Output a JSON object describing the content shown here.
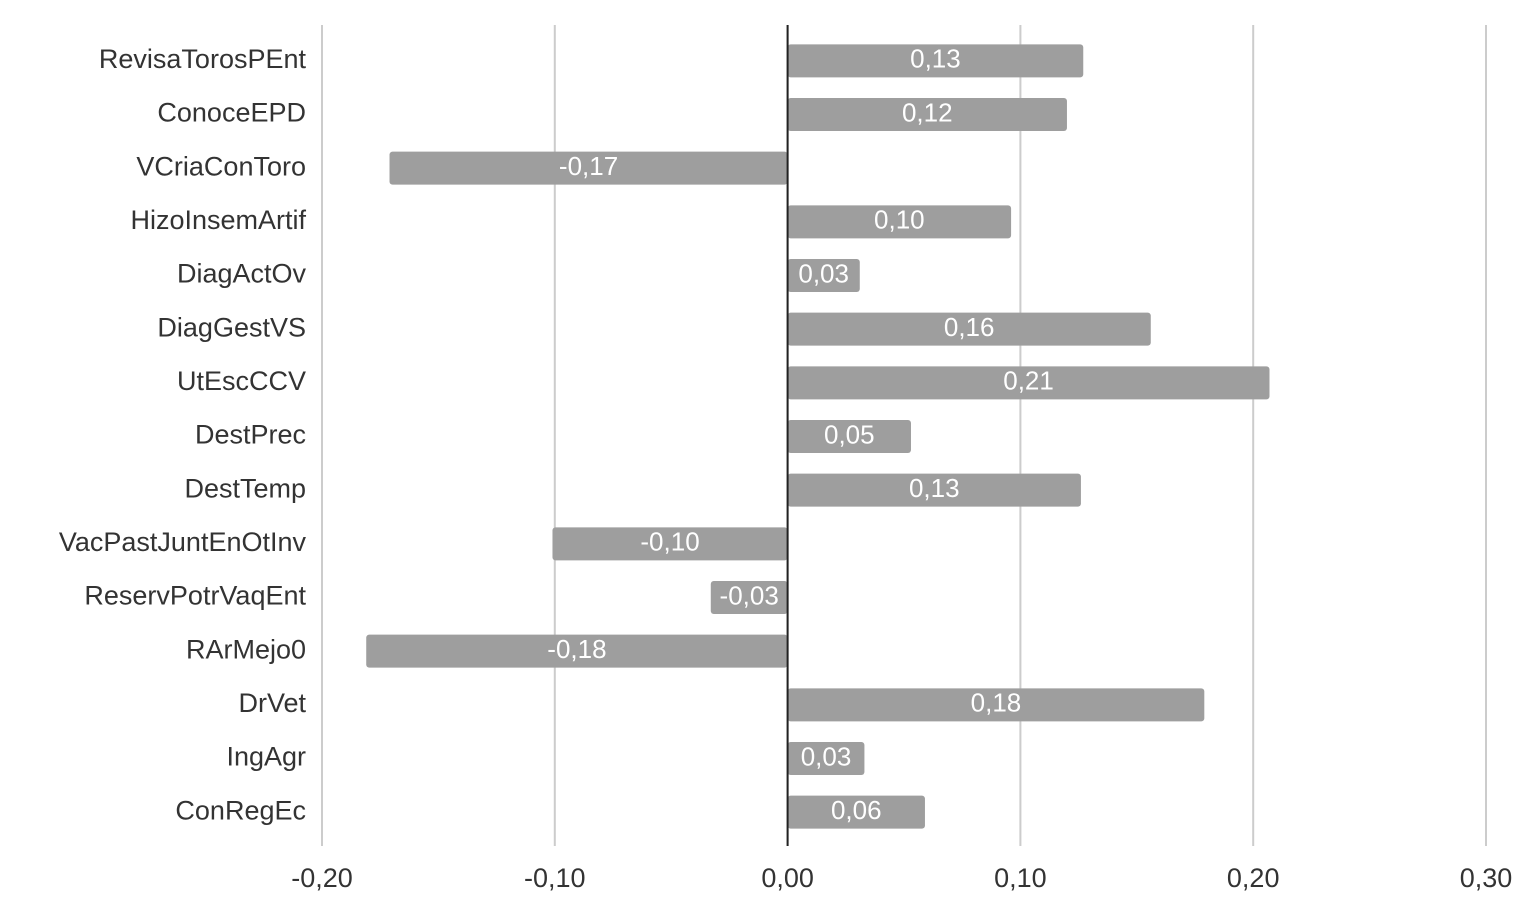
{
  "chart_data": {
    "type": "bar",
    "orientation": "horizontal",
    "categories": [
      "RevisaTorosPEnt",
      "ConoceEPD",
      "VCriaConToro",
      "HizoInsemArtif",
      "DiagActOv",
      "DiagGestVS",
      "UtEscCCV",
      "DestPrec",
      "DestTemp",
      "VacPastJuntEnOtInv",
      "ReservPotrVaqEnt",
      "RArMejo0",
      "DrVet",
      "IngAgr",
      "ConRegEc"
    ],
    "values": [
      0.127,
      0.12,
      -0.171,
      0.096,
      0.031,
      0.156,
      0.207,
      0.053,
      0.126,
      -0.101,
      -0.033,
      -0.181,
      0.179,
      0.033,
      0.059
    ],
    "value_labels": [
      "0,13",
      "0,12",
      "-0,17",
      "0,10",
      "0,03",
      "0,16",
      "0,21",
      "0,05",
      "0,13",
      "-0,10",
      "-0,03",
      "-0,18",
      "0,18",
      "0,03",
      "0,06"
    ],
    "color": "#9e9e9e",
    "xlim": [
      -0.2,
      0.3
    ],
    "xticks": [
      {
        "value": -0.2,
        "label": "-0,20"
      },
      {
        "value": -0.1,
        "label": "-0,10"
      },
      {
        "value": 0,
        "label": "0,00"
      },
      {
        "value": 0.1,
        "label": "0,10"
      },
      {
        "value": 0.2,
        "label": "0,20"
      },
      {
        "value": 0.3,
        "label": "0,30"
      }
    ],
    "grid": true
  }
}
